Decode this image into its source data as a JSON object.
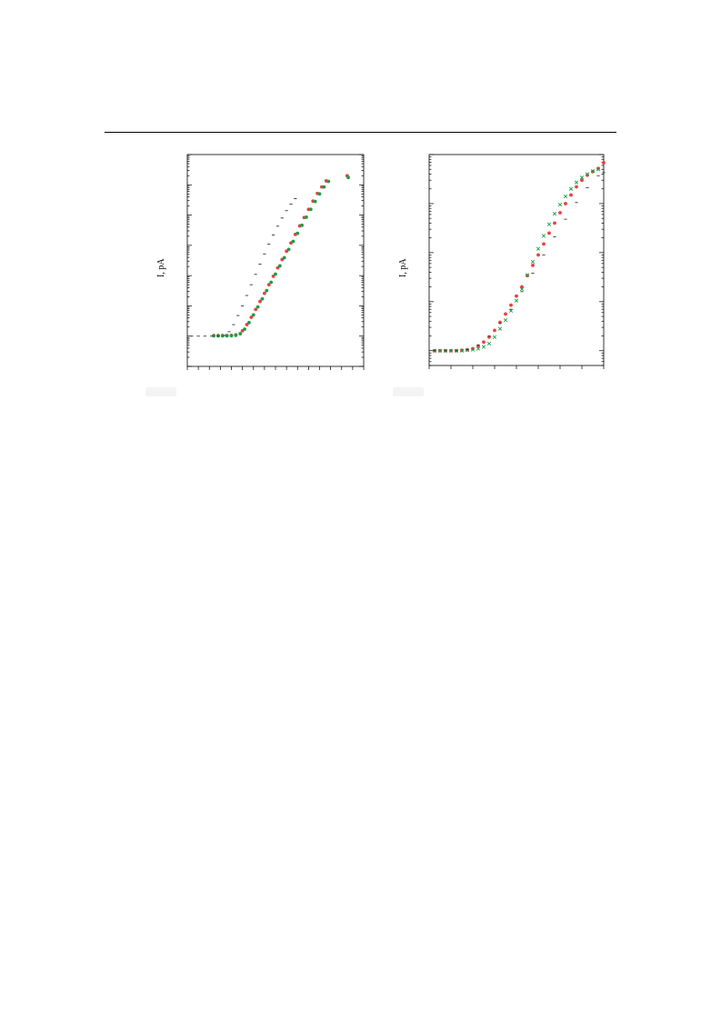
{
  "page": {
    "rule": true
  },
  "chart_data": [
    {
      "type": "scatter",
      "title": "",
      "xlabel": "",
      "ylabel": "I, pA",
      "yscale": "log",
      "xlim": [
        0,
        16
      ],
      "ylim": [
        0.1,
        1000000
      ],
      "x_ticks": [
        0,
        1,
        2,
        3,
        4,
        5,
        6,
        7,
        8,
        9,
        10,
        11,
        12,
        13,
        14,
        15,
        16
      ],
      "x_tick_labels": [],
      "y_tick_labels": [],
      "grid": false,
      "legend": "none",
      "colors": {
        "red": "#e8403f",
        "green": "#1a9e45",
        "dash": "#333333"
      },
      "series": [
        {
          "marker": "circle",
          "color": "#e8403f",
          "points": [
            [
              2.4,
              1.05
            ],
            [
              2.8,
              1.05
            ],
            [
              3.2,
              1.05
            ],
            [
              3.6,
              1.05
            ],
            [
              4.0,
              1.06
            ],
            [
              4.4,
              1.1
            ],
            [
              5.0,
              1.5
            ],
            [
              5.4,
              2.4
            ],
            [
              5.8,
              4.2
            ],
            [
              6.2,
              7.6
            ],
            [
              6.6,
              14
            ],
            [
              7.0,
              26
            ],
            [
              7.4,
              50
            ],
            [
              7.8,
              95
            ],
            [
              8.2,
              180
            ],
            [
              8.6,
              340
            ],
            [
              9.0,
              640
            ],
            [
              9.4,
              1200
            ],
            [
              9.8,
              2300
            ],
            [
              10.2,
              4400
            ],
            [
              10.6,
              8300
            ],
            [
              11.0,
              15500
            ],
            [
              11.4,
              29000
            ],
            [
              11.8,
              52000
            ],
            [
              12.2,
              85000
            ],
            [
              12.6,
              135000
            ],
            [
              14.5,
              200000
            ]
          ]
        },
        {
          "marker": "circle",
          "color": "#1a9e45",
          "points": [
            [
              2.4,
              1.02
            ],
            [
              2.8,
              1.02
            ],
            [
              3.2,
              1.02
            ],
            [
              3.6,
              1.02
            ],
            [
              4.0,
              1.03
            ],
            [
              4.4,
              1.06
            ],
            [
              4.8,
              1.2
            ],
            [
              5.2,
              1.7
            ],
            [
              5.6,
              2.8
            ],
            [
              6.0,
              5.0
            ],
            [
              6.4,
              9.2
            ],
            [
              6.8,
              17
            ],
            [
              7.2,
              32
            ],
            [
              7.6,
              60
            ],
            [
              8.0,
              112
            ],
            [
              8.4,
              210
            ],
            [
              8.8,
              390
            ],
            [
              9.2,
              730
            ],
            [
              9.6,
              1350
            ],
            [
              10.0,
              2500
            ],
            [
              10.4,
              4600
            ],
            [
              10.8,
              8500
            ],
            [
              11.2,
              15500
            ],
            [
              11.6,
              28000
            ],
            [
              12.0,
              50000
            ],
            [
              12.4,
              85000
            ],
            [
              12.8,
              130000
            ],
            [
              14.6,
              175000
            ]
          ]
        },
        {
          "marker": "dash",
          "color": "#333333",
          "points": [
            [
              0.4,
              1.0
            ],
            [
              1.0,
              1.0
            ],
            [
              1.6,
              1.0
            ],
            [
              2.2,
              1.0
            ],
            [
              2.8,
              1.0
            ],
            [
              3.4,
              1.05
            ],
            [
              3.8,
              1.4
            ],
            [
              4.2,
              2.4
            ],
            [
              4.6,
              4.8
            ],
            [
              5.0,
              10
            ],
            [
              5.4,
              22
            ],
            [
              5.8,
              50
            ],
            [
              6.2,
              110
            ],
            [
              6.6,
              240
            ],
            [
              7.0,
              520
            ],
            [
              7.4,
              1100
            ],
            [
              7.8,
              2200
            ],
            [
              8.2,
              4300
            ],
            [
              8.6,
              8000
            ],
            [
              9.0,
              14000
            ],
            [
              9.4,
              23000
            ],
            [
              9.8,
              35000
            ]
          ]
        }
      ]
    },
    {
      "type": "scatter",
      "title": "",
      "xlabel": "",
      "ylabel": "I, pA",
      "yscale": "log",
      "xlim": [
        0,
        16
      ],
      "ylim": [
        0.5,
        10000
      ],
      "x_ticks": [
        0,
        2,
        4,
        6,
        8,
        10,
        12,
        14,
        16
      ],
      "x_tick_labels": [],
      "y_tick_labels": [],
      "grid": false,
      "legend": "none",
      "colors": {
        "red": "#e8403f",
        "green": "#1a9e45",
        "dash": "#333333"
      },
      "series": [
        {
          "marker": "circle",
          "color": "#e8403f",
          "points": [
            [
              0.5,
              1.0
            ],
            [
              1.0,
              1.0
            ],
            [
              1.5,
              1.0
            ],
            [
              2.0,
              1.0
            ],
            [
              2.5,
              1.0
            ],
            [
              3.0,
              1.02
            ],
            [
              3.5,
              1.05
            ],
            [
              4.0,
              1.1
            ],
            [
              4.5,
              1.25
            ],
            [
              5.0,
              1.5
            ],
            [
              5.5,
              1.9
            ],
            [
              6.0,
              2.6
            ],
            [
              6.5,
              3.8
            ],
            [
              7.0,
              5.6
            ],
            [
              7.5,
              8.5
            ],
            [
              8.0,
              13
            ],
            [
              8.5,
              20
            ],
            [
              9.0,
              34
            ],
            [
              9.5,
              55
            ],
            [
              10.0,
              90
            ],
            [
              10.5,
              150
            ],
            [
              11.0,
              250
            ],
            [
              11.5,
              400
            ],
            [
              12.0,
              650
            ],
            [
              12.5,
              1000
            ],
            [
              13.0,
              1500
            ],
            [
              13.5,
              2200
            ],
            [
              14.0,
              3000
            ],
            [
              14.5,
              3800
            ],
            [
              15.0,
              4500
            ],
            [
              15.5,
              5200
            ],
            [
              16.0,
              6800
            ]
          ]
        },
        {
          "marker": "cross",
          "color": "#1a9e45",
          "points": [
            [
              0.5,
              1.0
            ],
            [
              1.0,
              1.0
            ],
            [
              1.5,
              1.0
            ],
            [
              2.0,
              1.0
            ],
            [
              2.5,
              1.0
            ],
            [
              3.0,
              1.0
            ],
            [
              3.5,
              1.02
            ],
            [
              4.0,
              1.05
            ],
            [
              4.5,
              1.1
            ],
            [
              5.0,
              1.2
            ],
            [
              5.5,
              1.4
            ],
            [
              6.0,
              1.9
            ],
            [
              6.5,
              2.8
            ],
            [
              7.0,
              4.2
            ],
            [
              7.5,
              6.5
            ],
            [
              8.0,
              10.5
            ],
            [
              8.5,
              18
            ],
            [
              9.0,
              35
            ],
            [
              9.5,
              65
            ],
            [
              10.0,
              120
            ],
            [
              10.5,
              220
            ],
            [
              11.0,
              380
            ],
            [
              11.5,
              620
            ],
            [
              12.0,
              950
            ],
            [
              12.5,
              1400
            ],
            [
              13.0,
              2000
            ],
            [
              13.5,
              2700
            ],
            [
              14.0,
              3400
            ],
            [
              14.5,
              4000
            ],
            [
              15.0,
              4600
            ],
            [
              15.5,
              5000
            ]
          ]
        },
        {
          "marker": "dash",
          "color": "#333333",
          "points": [
            [
              0.5,
              1.0
            ],
            [
              1.5,
              1.0
            ],
            [
              2.5,
              1.0
            ],
            [
              3.5,
              1.05
            ],
            [
              4.5,
              1.3
            ],
            [
              5.5,
              2.0
            ],
            [
              6.5,
              3.6
            ],
            [
              7.5,
              7.0
            ],
            [
              8.5,
              16
            ],
            [
              9.5,
              38
            ],
            [
              10.5,
              90
            ],
            [
              11.5,
              210
            ],
            [
              12.5,
              480
            ],
            [
              13.5,
              1050
            ],
            [
              14.5,
              2100
            ],
            [
              15.5,
              3700
            ],
            [
              16.0,
              4300
            ]
          ]
        }
      ]
    }
  ]
}
